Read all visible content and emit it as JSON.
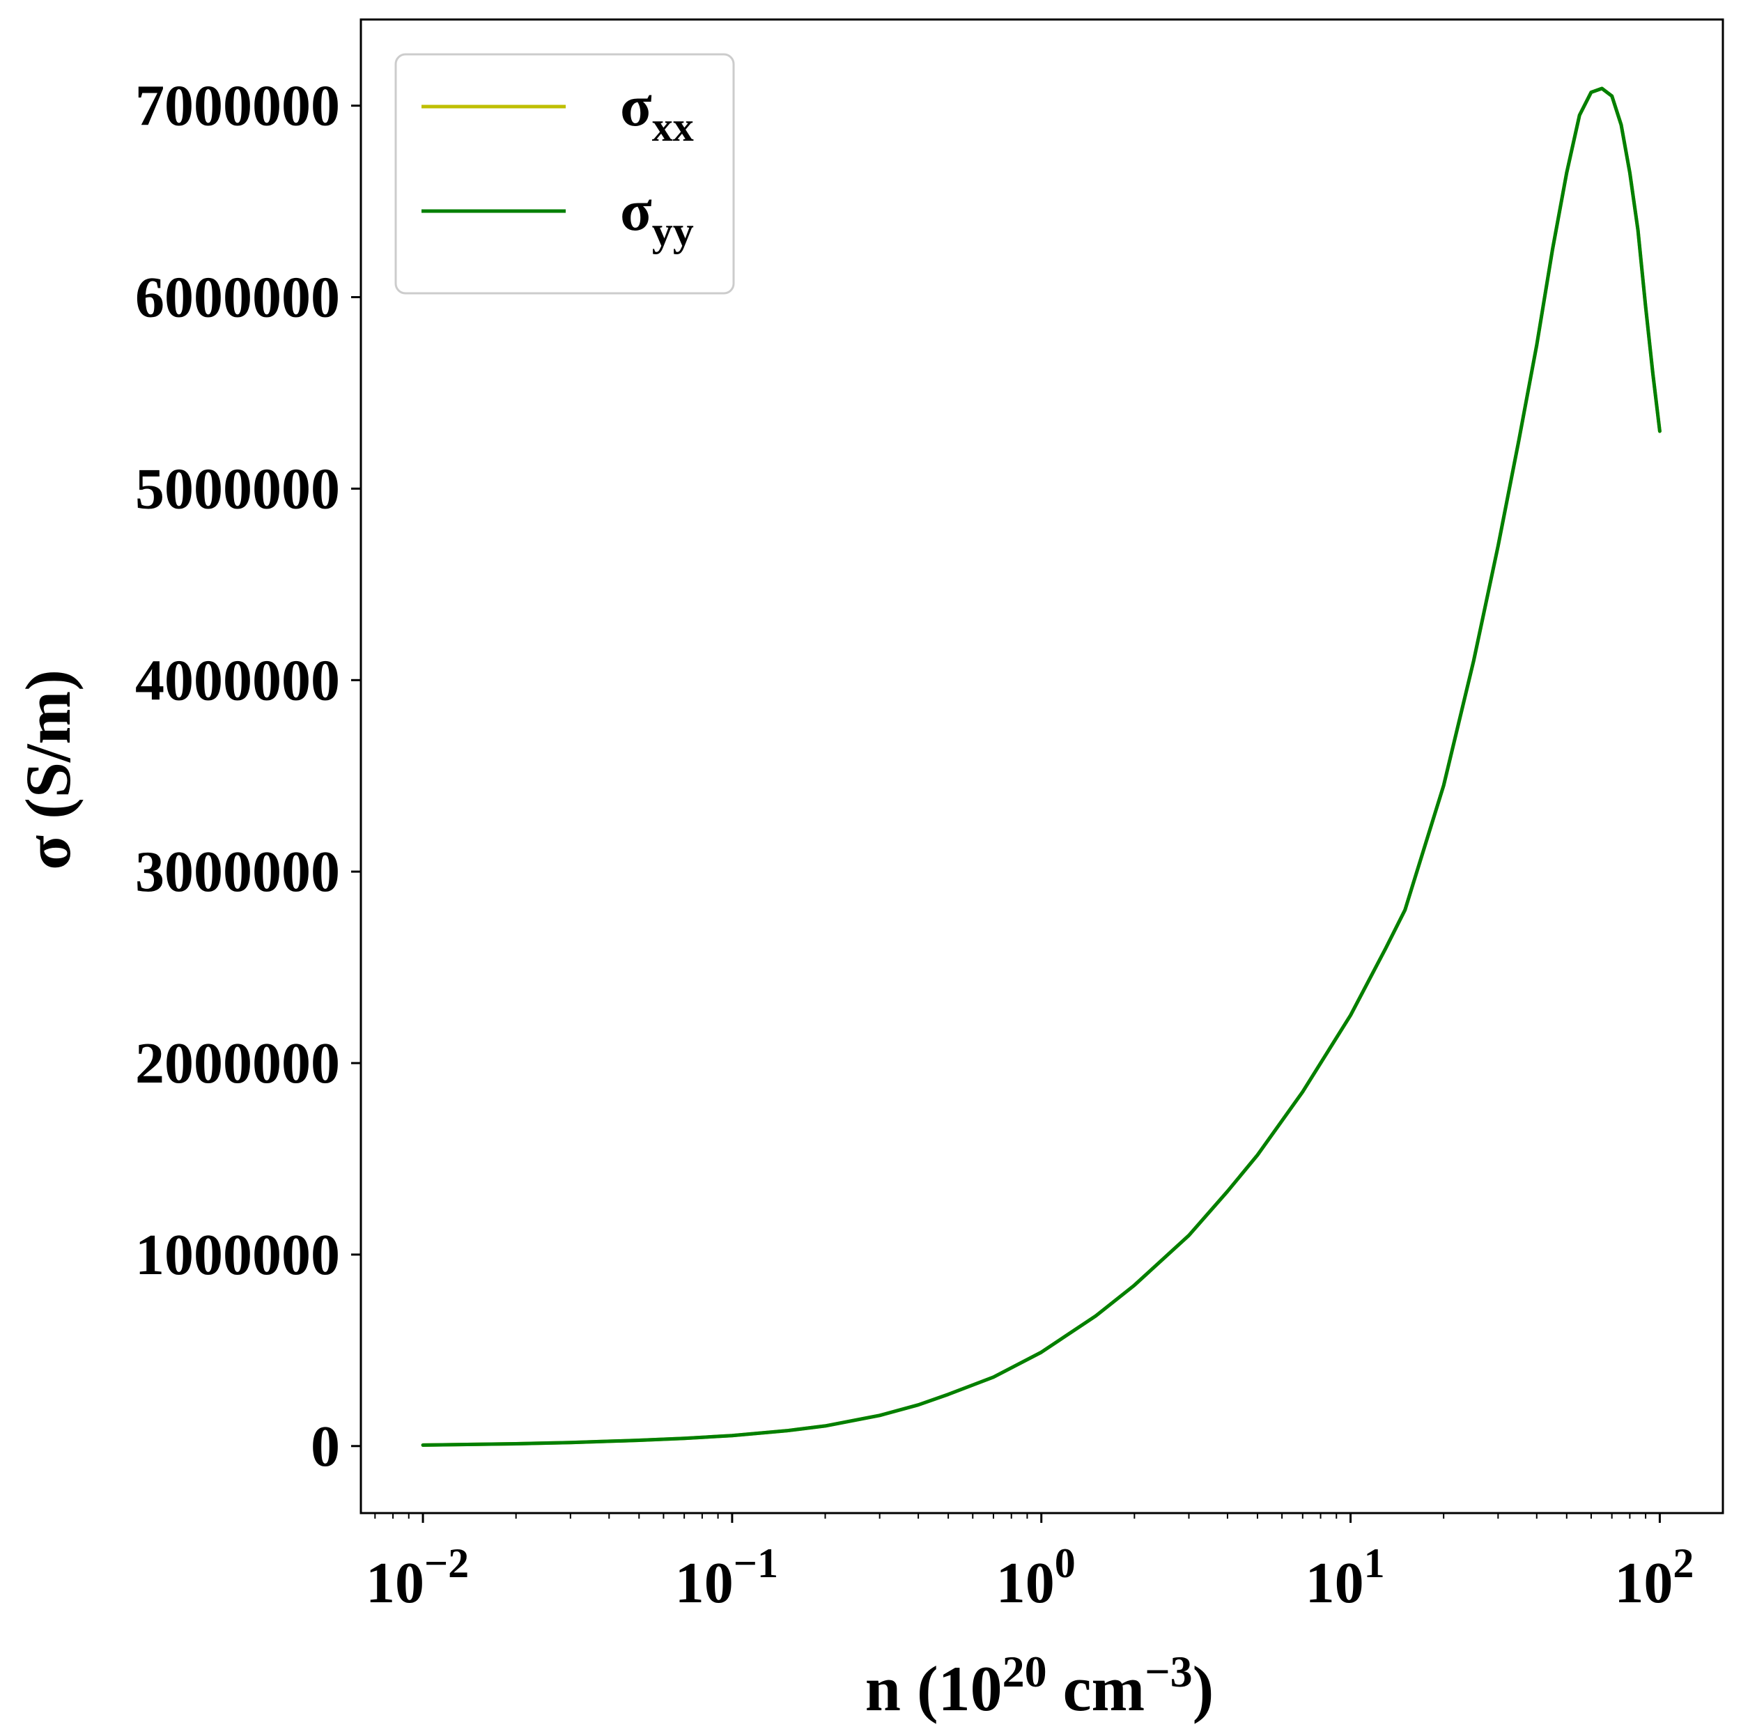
{
  "chart_data": {
    "type": "line",
    "x_scale": "log",
    "xlabel": {
      "base": "n (10",
      "sup1": "20",
      "mid": " cm",
      "sup2": "−3",
      "end": ")"
    },
    "ylabel": "σ (S/m)",
    "xlim": [
      0.0063,
      160
    ],
    "ylim": [
      -350000,
      7450000
    ],
    "x_ticks": [
      {
        "value": 0.01,
        "base": "10",
        "exp": "−2"
      },
      {
        "value": 0.1,
        "base": "10",
        "exp": "−1"
      },
      {
        "value": 1,
        "base": "10",
        "exp": "0"
      },
      {
        "value": 10,
        "base": "10",
        "exp": "1"
      },
      {
        "value": 100,
        "base": "10",
        "exp": "2"
      }
    ],
    "y_ticks": [
      {
        "value": 0,
        "label": "0"
      },
      {
        "value": 1000000,
        "label": "1000000"
      },
      {
        "value": 2000000,
        "label": "2000000"
      },
      {
        "value": 3000000,
        "label": "3000000"
      },
      {
        "value": 4000000,
        "label": "4000000"
      },
      {
        "value": 5000000,
        "label": "5000000"
      },
      {
        "value": 6000000,
        "label": "6000000"
      },
      {
        "value": 7000000,
        "label": "7000000"
      }
    ],
    "grid": false,
    "legend_position": "upper-left",
    "series": [
      {
        "name": "σxx",
        "legend_base": "σ",
        "legend_sub": "xx",
        "color": "#bfbf00",
        "x": [
          0.01,
          0.02,
          0.03,
          0.05,
          0.07,
          0.1,
          0.15,
          0.2,
          0.3,
          0.4,
          0.5,
          0.7,
          1.0,
          1.5,
          2.0,
          3.0,
          4.0,
          5.0,
          7.0,
          10,
          13,
          15,
          20,
          25,
          30,
          35,
          40,
          45,
          50,
          55,
          60,
          65,
          70,
          75,
          80,
          85,
          90,
          95,
          100
        ],
        "y": [
          5000,
          12000,
          18000,
          30000,
          40000,
          55000,
          80000,
          105000,
          160000,
          215000,
          270000,
          360000,
          490000,
          680000,
          840000,
          1100000,
          1330000,
          1520000,
          1850000,
          2250000,
          2600000,
          2800000,
          3450000,
          4100000,
          4700000,
          5250000,
          5750000,
          6250000,
          6650000,
          6950000,
          7070000,
          7090000,
          7050000,
          6900000,
          6650000,
          6350000,
          5950000,
          5600000,
          5300000
        ]
      },
      {
        "name": "σyy",
        "legend_base": "σ",
        "legend_sub": "yy",
        "color": "#007f00",
        "x": [
          0.01,
          0.02,
          0.03,
          0.05,
          0.07,
          0.1,
          0.15,
          0.2,
          0.3,
          0.4,
          0.5,
          0.7,
          1.0,
          1.5,
          2.0,
          3.0,
          4.0,
          5.0,
          7.0,
          10,
          13,
          15,
          20,
          25,
          30,
          35,
          40,
          45,
          50,
          55,
          60,
          65,
          70,
          75,
          80,
          85,
          90,
          95,
          100
        ],
        "y": [
          5000,
          12000,
          18000,
          30000,
          40000,
          55000,
          80000,
          105000,
          160000,
          215000,
          270000,
          360000,
          490000,
          680000,
          840000,
          1100000,
          1330000,
          1520000,
          1850000,
          2250000,
          2600000,
          2800000,
          3450000,
          4100000,
          4700000,
          5250000,
          5750000,
          6250000,
          6650000,
          6950000,
          7070000,
          7090000,
          7050000,
          6900000,
          6650000,
          6350000,
          5950000,
          5600000,
          5300000
        ]
      }
    ]
  }
}
